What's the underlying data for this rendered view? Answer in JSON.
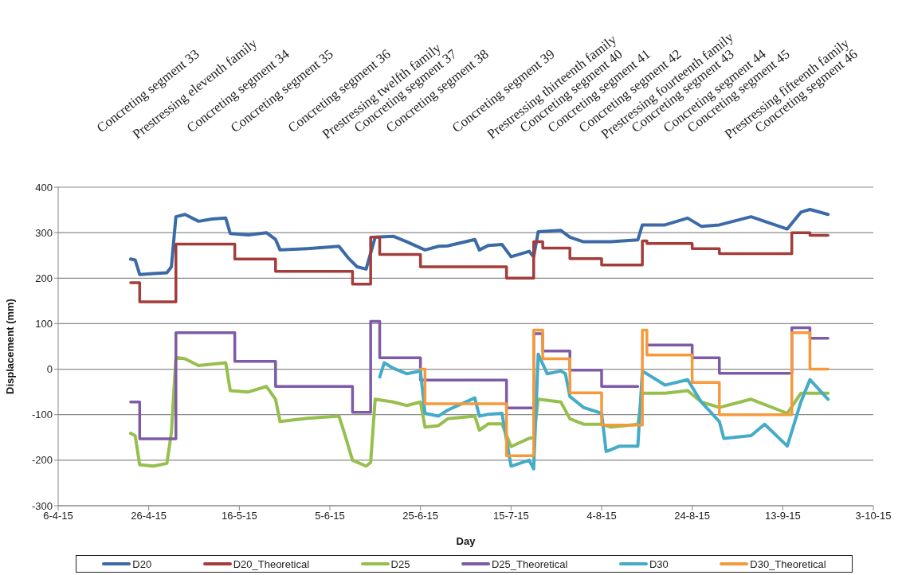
{
  "chart_data": {
    "type": "line",
    "xlabel": "Day",
    "ylabel": "Displacement (mm)",
    "xlim": [
      "2015-04-06",
      "2015-10-03"
    ],
    "xticks": [
      {
        "value": "2015-04-06",
        "label": "6-4-15"
      },
      {
        "value": "2015-04-26",
        "label": "26-4-15"
      },
      {
        "value": "2015-05-16",
        "label": "16-5-15"
      },
      {
        "value": "2015-06-05",
        "label": "5-6-15"
      },
      {
        "value": "2015-06-25",
        "label": "25-6-15"
      },
      {
        "value": "2015-07-15",
        "label": "15-7-15"
      },
      {
        "value": "2015-08-04",
        "label": "4-8-15"
      },
      {
        "value": "2015-08-24",
        "label": "24-8-15"
      },
      {
        "value": "2015-09-13",
        "label": "13-9-15"
      },
      {
        "value": "2015-10-03",
        "label": "3-10-15"
      }
    ],
    "ylim": [
      -300,
      400
    ],
    "yticks": [
      -300,
      -200,
      -100,
      0,
      100,
      200,
      300,
      400
    ],
    "grid": "y",
    "legend": "bottom",
    "annotations": [
      "Concreting segment 33",
      "Prestressing eleventh family",
      "Concreting segment 34",
      "Concreting segment 35",
      "Concreting segment 36",
      "Prestressing twelfth family",
      "Concreting segment 37",
      "Concreting segment 38",
      "Concreting segment 39",
      "Prestressing thirteenth family",
      "Concreting segment 40",
      "Concreting segment 41",
      "Concreting segment 42",
      "Prestressing fourteenth family",
      "Concreting segment 43",
      "Concreting segment 44",
      "Concreting segment 45",
      "Prestressing fifteenth family",
      "Concreting segment 46"
    ],
    "series": [
      {
        "name": "D20",
        "type": "line",
        "color": "#3c6aa6",
        "x": [
          "2015-04-22",
          "2015-04-23",
          "2015-04-24",
          "2015-04-27",
          "2015-04-30",
          "2015-05-01",
          "2015-05-02",
          "2015-05-04",
          "2015-05-07",
          "2015-05-10",
          "2015-05-13",
          "2015-05-14",
          "2015-05-18",
          "2015-05-22",
          "2015-05-24",
          "2015-05-25",
          "2015-05-31",
          "2015-06-07",
          "2015-06-09",
          "2015-06-11",
          "2015-06-13",
          "2015-06-15",
          "2015-06-19",
          "2015-06-22",
          "2015-06-26",
          "2015-06-29",
          "2015-07-01",
          "2015-07-07",
          "2015-07-08",
          "2015-07-10",
          "2015-07-13",
          "2015-07-15",
          "2015-07-19",
          "2015-07-20",
          "2015-07-21",
          "2015-07-26",
          "2015-07-28",
          "2015-07-31",
          "2015-08-06",
          "2015-08-12",
          "2015-08-13",
          "2015-08-18",
          "2015-08-23",
          "2015-08-26",
          "2015-08-30",
          "2015-09-06",
          "2015-09-14",
          "2015-09-17",
          "2015-09-19",
          "2015-09-23"
        ],
        "values": [
          242,
          240,
          208,
          210,
          212,
          225,
          335,
          340,
          325,
          330,
          332,
          298,
          295,
          300,
          285,
          262,
          265,
          270,
          245,
          225,
          220,
          290,
          292,
          280,
          262,
          270,
          271,
          285,
          262,
          272,
          274,
          247,
          259,
          247,
          302,
          305,
          290,
          280,
          280,
          284,
          317,
          317,
          332,
          314,
          317,
          335,
          308,
          345,
          351,
          340
        ]
      },
      {
        "name": "D20_Theoretical",
        "type": "step",
        "color": "#a33c3a",
        "x": [
          "2015-04-22",
          "2015-04-24",
          "2015-05-02",
          "2015-05-15",
          "2015-05-24",
          "2015-06-10",
          "2015-06-14",
          "2015-06-16",
          "2015-06-25",
          "2015-07-14",
          "2015-07-20",
          "2015-07-22",
          "2015-07-28",
          "2015-08-04",
          "2015-08-13",
          "2015-08-14",
          "2015-08-24",
          "2015-08-30",
          "2015-09-15",
          "2015-09-19",
          "2015-09-23"
        ],
        "values": [
          190,
          148,
          275,
          242,
          215,
          187,
          290,
          252,
          225,
          200,
          280,
          266,
          243,
          229,
          282,
          276,
          265,
          254,
          300,
          294,
          294
        ]
      },
      {
        "name": "D25",
        "type": "line",
        "color": "#97bf4e",
        "x": [
          "2015-04-22",
          "2015-04-23",
          "2015-04-24",
          "2015-04-27",
          "2015-04-30",
          "2015-05-01",
          "2015-05-02",
          "2015-05-04",
          "2015-05-07",
          "2015-05-10",
          "2015-05-13",
          "2015-05-14",
          "2015-05-18",
          "2015-05-22",
          "2015-05-24",
          "2015-05-25",
          "2015-05-31",
          "2015-06-07",
          "2015-06-08",
          "2015-06-10",
          "2015-06-13",
          "2015-06-14",
          "2015-06-15",
          "2015-06-19",
          "2015-06-22",
          "2015-06-25",
          "2015-06-26",
          "2015-06-29",
          "2015-07-01",
          "2015-07-07",
          "2015-07-08",
          "2015-07-10",
          "2015-07-13",
          "2015-07-15",
          "2015-07-19",
          "2015-07-20",
          "2015-07-21",
          "2015-07-26",
          "2015-07-28",
          "2015-07-31",
          "2015-08-04",
          "2015-08-06",
          "2015-08-12",
          "2015-08-13",
          "2015-08-18",
          "2015-08-23",
          "2015-08-26",
          "2015-08-30",
          "2015-09-06",
          "2015-09-14",
          "2015-09-17",
          "2015-09-23"
        ],
        "values": [
          -141,
          -146,
          -210,
          -213,
          -207,
          -140,
          26,
          23,
          8,
          11,
          14,
          -47,
          -50,
          -38,
          -66,
          -115,
          -108,
          -103,
          -134,
          -200,
          -213,
          -205,
          -66,
          -72,
          -80,
          -72,
          -127,
          -124,
          -109,
          -103,
          -134,
          -120,
          -120,
          -170,
          -152,
          -150,
          -66,
          -72,
          -109,
          -121,
          -121,
          -127,
          -121,
          -53,
          -53,
          -47,
          -72,
          -84,
          -66,
          -97,
          -53,
          -53
        ]
      },
      {
        "name": "D25_Theoretical",
        "type": "step",
        "color": "#7d5ba6",
        "x": [
          "2015-04-22",
          "2015-04-24",
          "2015-05-02",
          "2015-05-15",
          "2015-05-24",
          "2015-06-10",
          "2015-06-14",
          "2015-06-16",
          "2015-06-25",
          "2015-07-14",
          "2015-07-20",
          "2015-07-22",
          "2015-07-28",
          "2015-08-04",
          "2015-08-12",
          "2015-08-13",
          "2015-08-14",
          "2015-08-24",
          "2015-08-30",
          "2015-09-15",
          "2015-09-19",
          "2015-09-23"
        ],
        "values": [
          -72,
          -153,
          80,
          17,
          -38,
          -95,
          105,
          25,
          -24,
          -85,
          78,
          40,
          -2,
          -38,
          -38,
          null,
          53,
          25,
          -9,
          91,
          68,
          68
        ]
      },
      {
        "name": "D30",
        "type": "line",
        "color": "#44abc8",
        "x": [
          "2015-06-16",
          "2015-06-17",
          "2015-06-19",
          "2015-06-22",
          "2015-06-25",
          "2015-06-26",
          "2015-06-29",
          "2015-07-01",
          "2015-07-07",
          "2015-07-08",
          "2015-07-10",
          "2015-07-13",
          "2015-07-15",
          "2015-07-19",
          "2015-07-20",
          "2015-07-21",
          "2015-07-23",
          "2015-07-26",
          "2015-07-27",
          "2015-07-28",
          "2015-07-31",
          "2015-08-04",
          "2015-08-05",
          "2015-08-08",
          "2015-08-12",
          "2015-08-13",
          "2015-08-18",
          "2015-08-23",
          "2015-08-26",
          "2015-08-30",
          "2015-08-31",
          "2015-09-06",
          "2015-09-09",
          "2015-09-14",
          "2015-09-17",
          "2015-09-19",
          "2015-09-23"
        ],
        "values": [
          -17,
          14,
          2,
          -10,
          -4,
          -97,
          -103,
          -90,
          -63,
          -103,
          -99,
          -97,
          -213,
          -200,
          -219,
          33,
          -10,
          -4,
          -10,
          -60,
          -84,
          -97,
          -181,
          -169,
          -169,
          -4,
          -35,
          -23,
          -72,
          -115,
          -152,
          -146,
          -121,
          -169,
          -72,
          -23,
          -66
        ]
      },
      {
        "name": "D30_Theoretical",
        "type": "step",
        "color": "#f59a3b",
        "x": [
          "2015-06-25",
          "2015-06-26",
          "2015-07-14",
          "2015-07-20",
          "2015-07-22",
          "2015-07-28",
          "2015-08-04",
          "2015-08-13",
          "2015-08-14",
          "2015-08-24",
          "2015-08-30",
          "2015-09-15",
          "2015-09-19",
          "2015-09-23"
        ],
        "values": [
          0,
          -76,
          -190,
          86,
          23,
          -52,
          -123,
          86,
          31,
          -29,
          -100,
          80,
          0,
          0
        ]
      }
    ]
  }
}
